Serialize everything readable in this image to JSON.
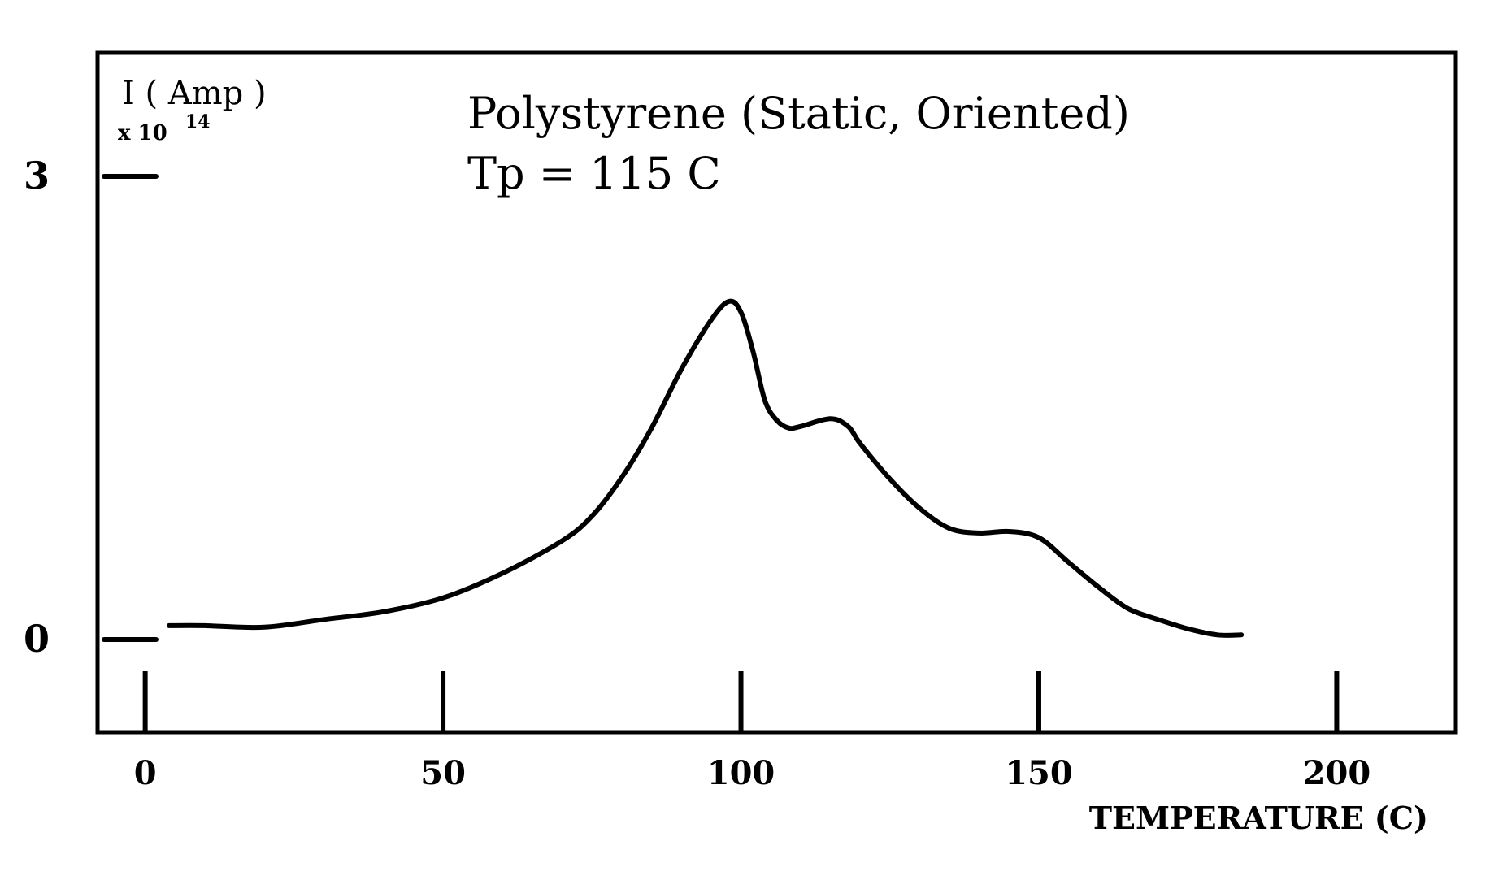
{
  "chart_data": {
    "type": "line",
    "title": "Polystyrene (Static, Oriented)",
    "subtitle": "Tp = 115 C",
    "xlabel": "TEMPERATURE (C)",
    "ylabel": "I ( Amp )",
    "ylabel_scale_base": "x 10",
    "ylabel_scale_exp": "14",
    "xlim": [
      -8,
      220
    ],
    "ylim": [
      -0.6,
      3.8
    ],
    "x_ticks": [
      0,
      50,
      100,
      150,
      200
    ],
    "x_tick_labels": [
      "0",
      "50",
      "100",
      "150",
      "200"
    ],
    "y_ticks": [
      0,
      3
    ],
    "y_tick_labels": [
      "0",
      "3"
    ],
    "grid": false,
    "series": [
      {
        "values": [
          [
            4,
            0.09
          ],
          [
            10,
            0.09
          ],
          [
            20,
            0.08
          ],
          [
            30,
            0.13
          ],
          [
            40,
            0.18
          ],
          [
            50,
            0.27
          ],
          [
            60,
            0.43
          ],
          [
            70,
            0.64
          ],
          [
            75,
            0.8
          ],
          [
            80,
            1.05
          ],
          [
            85,
            1.37
          ],
          [
            90,
            1.75
          ],
          [
            95,
            2.07
          ],
          [
            98,
            2.19
          ],
          [
            100,
            2.12
          ],
          [
            102,
            1.87
          ],
          [
            104,
            1.55
          ],
          [
            106,
            1.42
          ],
          [
            108,
            1.37
          ],
          [
            110,
            1.38
          ],
          [
            115,
            1.43
          ],
          [
            118,
            1.38
          ],
          [
            120,
            1.27
          ],
          [
            125,
            1.04
          ],
          [
            130,
            0.85
          ],
          [
            135,
            0.72
          ],
          [
            140,
            0.69
          ],
          [
            145,
            0.7
          ],
          [
            150,
            0.66
          ],
          [
            155,
            0.5
          ],
          [
            160,
            0.34
          ],
          [
            165,
            0.2
          ],
          [
            170,
            0.13
          ],
          [
            175,
            0.07
          ],
          [
            180,
            0.03
          ],
          [
            184,
            0.03
          ]
        ]
      }
    ]
  }
}
